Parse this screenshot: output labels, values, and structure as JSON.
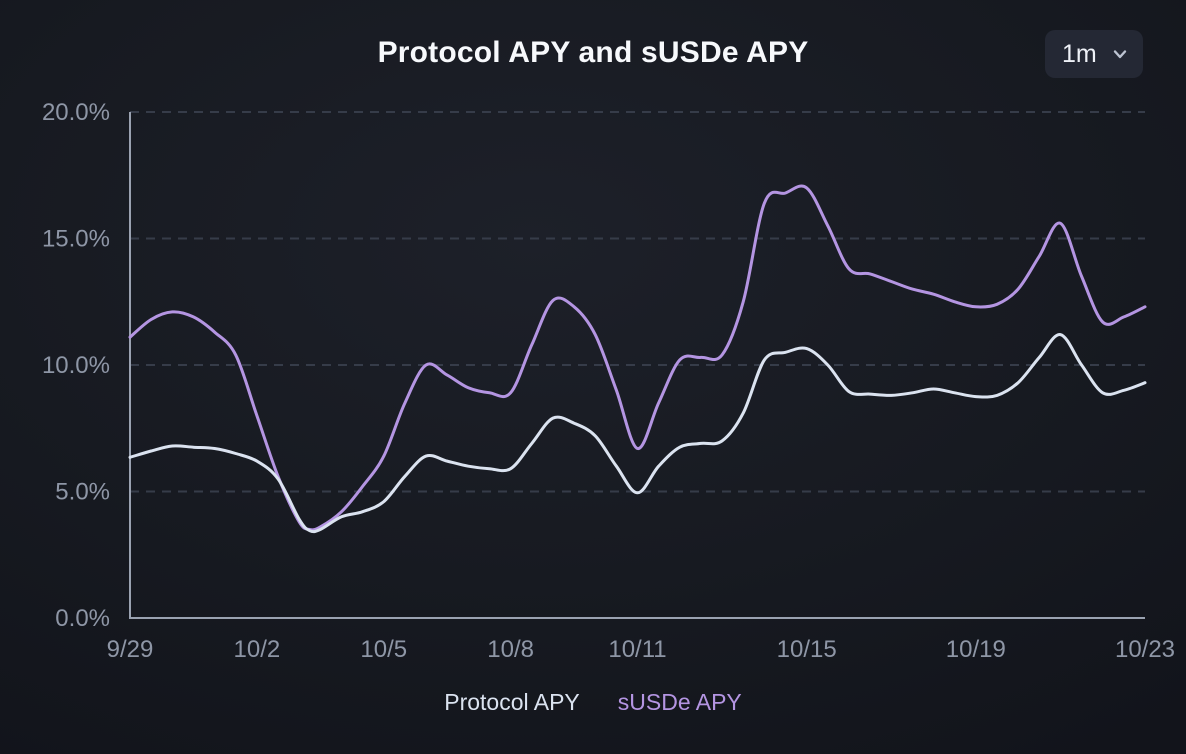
{
  "header": {
    "title": "Protocol APY and sUSDe APY",
    "timeframe": {
      "selected": "1m",
      "icon": "chevron-down-icon"
    }
  },
  "colors": {
    "background": "#171a21",
    "title": "#f7f9fc",
    "dropdown_bg": "#242834",
    "axis": "#9aa2b1",
    "gridline": "#363c49",
    "tick_label": "#8e96a6",
    "protocol_apy": "#dbe3f0",
    "susde_apy": "#b495e2"
  },
  "chart_data": {
    "type": "line",
    "title": "Protocol APY and sUSDe APY",
    "xlabel": "",
    "ylabel": "",
    "ylim": [
      0,
      20
    ],
    "xlim_days": [
      0,
      24
    ],
    "grid": "dashed-horizontal",
    "legend_position": "bottom-center",
    "y_ticks": [
      {
        "label": "20.0%",
        "value": 20
      },
      {
        "label": "15.0%",
        "value": 15
      },
      {
        "label": "10.0%",
        "value": 10
      },
      {
        "label": "5.0%",
        "value": 5
      },
      {
        "label": "0.0%",
        "value": 0
      }
    ],
    "x_ticks": [
      {
        "label": "9/29",
        "day": 0
      },
      {
        "label": "10/2",
        "day": 3
      },
      {
        "label": "10/5",
        "day": 6
      },
      {
        "label": "10/8",
        "day": 9
      },
      {
        "label": "10/11",
        "day": 12
      },
      {
        "label": "10/15",
        "day": 16
      },
      {
        "label": "10/19",
        "day": 20
      },
      {
        "label": "10/23",
        "day": 24
      }
    ],
    "x_days": [
      0,
      0.5,
      1,
      1.5,
      2,
      2.5,
      3,
      3.5,
      4,
      4.25,
      4.5,
      5,
      5.5,
      6,
      6.5,
      7,
      7.5,
      8,
      8.5,
      9,
      9.5,
      10,
      10.5,
      11,
      11.5,
      12,
      12.5,
      13,
      13.5,
      14,
      14.5,
      15,
      15.5,
      16,
      16.5,
      17,
      17.5,
      18,
      18.5,
      19,
      19.5,
      20,
      20.5,
      21,
      21.5,
      22,
      22.5,
      23,
      23.5,
      24
    ],
    "series": [
      {
        "name": "Protocol APY",
        "color": "#dbe3f0",
        "values": [
          6.35,
          6.6,
          6.8,
          6.75,
          6.7,
          6.5,
          6.2,
          5.5,
          3.9,
          3.45,
          3.5,
          4.0,
          4.2,
          4.6,
          5.6,
          6.4,
          6.2,
          6.0,
          5.9,
          5.9,
          6.9,
          7.9,
          7.7,
          7.2,
          6.0,
          4.95,
          6.0,
          6.75,
          6.9,
          7.0,
          8.1,
          10.2,
          10.5,
          10.65,
          10.0,
          8.95,
          8.85,
          8.8,
          8.9,
          9.05,
          8.9,
          8.75,
          8.8,
          9.3,
          10.3,
          11.2,
          10.0,
          8.9,
          9.0,
          9.3
        ]
      },
      {
        "name": "sUSDe APY",
        "color": "#b495e2",
        "values": [
          11.1,
          11.8,
          12.1,
          11.9,
          11.3,
          10.4,
          8.0,
          5.6,
          3.8,
          3.5,
          3.6,
          4.2,
          5.2,
          6.4,
          8.5,
          10.0,
          9.6,
          9.1,
          8.9,
          8.9,
          10.8,
          12.55,
          12.3,
          11.2,
          9.0,
          6.7,
          8.5,
          10.2,
          10.3,
          10.4,
          12.5,
          16.4,
          16.8,
          17.0,
          15.5,
          13.8,
          13.6,
          13.3,
          13.0,
          12.8,
          12.5,
          12.3,
          12.4,
          13.0,
          14.3,
          15.6,
          13.5,
          11.7,
          11.9,
          12.3
        ]
      }
    ]
  }
}
